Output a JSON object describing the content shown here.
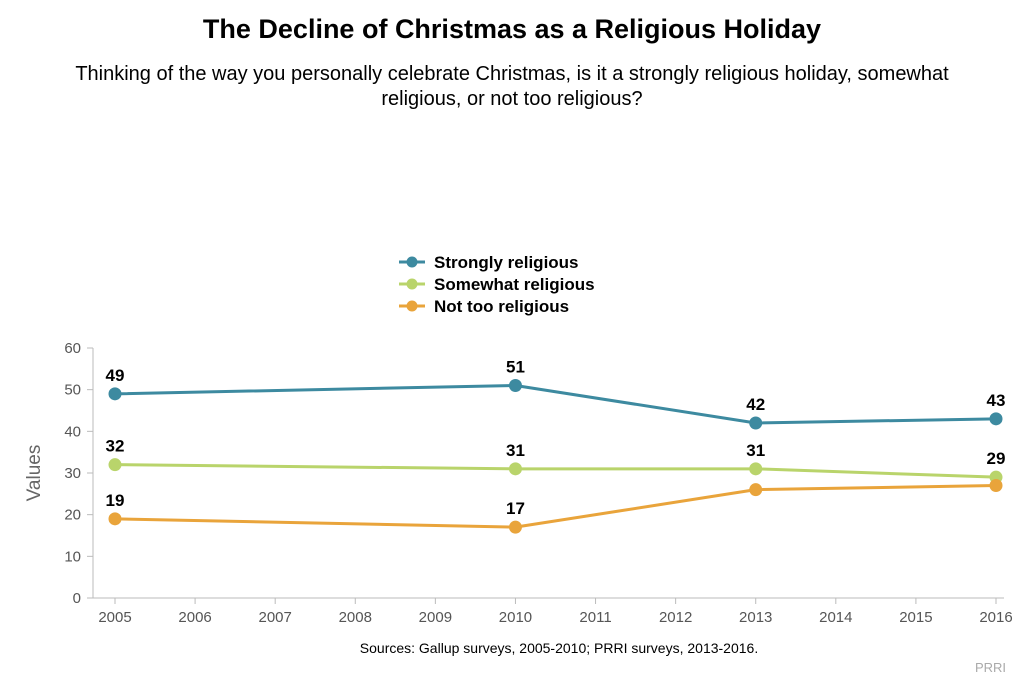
{
  "chart_data": {
    "type": "line",
    "title": "The Decline of Christmas as a Religious Holiday",
    "subtitle": "Thinking of the way you personally celebrate Christmas, is it a strongly religious holiday, somewhat religious, or not too religious?",
    "ylabel": "Values",
    "xlabel": "",
    "x_ticks": [
      "2005",
      "2006",
      "2007",
      "2008",
      "2009",
      "2010",
      "2011",
      "2012",
      "2013",
      "2014",
      "2015",
      "2016"
    ],
    "xlim": [
      2005,
      2016
    ],
    "ylim": [
      0,
      60
    ],
    "y_ticks": [
      "0",
      "10",
      "20",
      "30",
      "40",
      "50",
      "60"
    ],
    "grid": false,
    "legend_position": "top-center",
    "series": [
      {
        "name": "Strongly religious",
        "color": "#3d8aa0",
        "x": [
          2005,
          2010,
          2013,
          2016
        ],
        "values": [
          49,
          51,
          42,
          43
        ],
        "labels": [
          "49",
          "51",
          "42",
          "43"
        ],
        "labelled": [
          true,
          true,
          true,
          true
        ]
      },
      {
        "name": "Somewhat religious",
        "color": "#b9d46b",
        "x": [
          2005,
          2010,
          2013,
          2016
        ],
        "values": [
          32,
          31,
          31,
          29
        ],
        "labels": [
          "32",
          "31",
          "31",
          "29"
        ],
        "labelled": [
          true,
          true,
          true,
          true
        ]
      },
      {
        "name": "Not too religious",
        "color": "#e9a43b",
        "x": [
          2005,
          2010,
          2013,
          2016
        ],
        "values": [
          19,
          17,
          26,
          27
        ],
        "labels": [
          "19",
          "17",
          "",
          ""
        ],
        "labelled": [
          true,
          true,
          false,
          false
        ]
      }
    ]
  },
  "source_note": "Sources: Gallup surveys, 2005-2010; PRRI surveys, 2013-2016.",
  "credit": "PRRI"
}
